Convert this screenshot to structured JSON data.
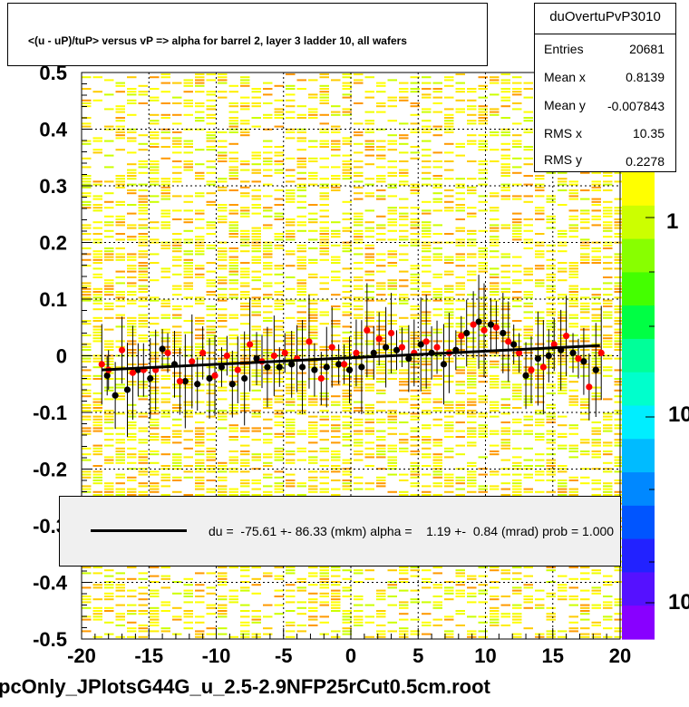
{
  "title": "<(u - uP)/tuP> versus   vP => alpha for barrel 2, layer 3 ladder 10, all wafers",
  "stats": {
    "name": "duOvertuPvP3010",
    "rows": [
      {
        "label": "Entries",
        "value": "20681"
      },
      {
        "label": "Mean x",
        "value": "0.8139"
      },
      {
        "label": "Mean y",
        "value": "-0.007843"
      },
      {
        "label": "RMS x",
        "value": "10.35"
      },
      {
        "label": "RMS y",
        "value": "0.2278"
      }
    ]
  },
  "fit_text": "du =  -75.61 +- 86.33 (mkm) alpha =    1.19 +-  0.84 (mrad) prob = 1.000",
  "footer": "pcOnly_JPlotsG44G_u_2.5-2.9NFP25rCut0.5cm.root",
  "palette_labels": [
    "1",
    "10",
    "10"
  ],
  "chart_data": {
    "type": "scatter",
    "x_range": [
      -20,
      20
    ],
    "y_range": [
      -0.5,
      0.5
    ],
    "x_ticks": [
      "-20",
      "-15",
      "-10",
      "-5",
      "0",
      "5",
      "10",
      "15",
      "20"
    ],
    "y_ticks": [
      "-0.5",
      "-0.4",
      "-0.3",
      "-0.2",
      "-0.1",
      "0",
      "0.1",
      "0.2",
      "0.3",
      "0.4",
      "0.5"
    ],
    "grid": true,
    "fit_line": {
      "x": [
        -18.5,
        18.5
      ],
      "y": [
        -0.025,
        0.018
      ]
    },
    "series": [
      {
        "color": "#000000",
        "x": [
          -18.1,
          -17.5,
          -16.6,
          -15.8,
          -14.9,
          -14.0,
          -13.1,
          -12.3,
          -11.4,
          -10.5,
          -9.6,
          -8.8,
          -7.9,
          -7.0,
          -6.2,
          -5.3,
          -4.4,
          -3.6,
          -2.7,
          -1.8,
          -0.9,
          -0.1,
          0.8,
          1.7,
          2.6,
          3.4,
          4.3,
          5.2,
          6.0,
          6.9,
          7.8,
          8.6,
          9.5,
          10.4,
          11.3,
          12.1,
          13.0,
          13.9,
          14.7,
          15.6,
          16.5,
          17.3,
          18.2
        ],
        "y": [
          -0.035,
          -0.07,
          -0.06,
          -0.025,
          -0.04,
          0.012,
          -0.015,
          -0.045,
          -0.05,
          -0.04,
          -0.02,
          -0.05,
          -0.04,
          -0.005,
          -0.02,
          -0.02,
          -0.015,
          -0.02,
          -0.025,
          -0.02,
          -0.015,
          -0.025,
          -0.02,
          0.005,
          0.015,
          0.01,
          -0.005,
          0.02,
          0.005,
          -0.015,
          0.01,
          0.04,
          0.06,
          0.055,
          0.04,
          0.02,
          -0.035,
          -0.005,
          0.0,
          0.01,
          0.005,
          -0.01,
          -0.025
        ]
      },
      {
        "color": "#ff0000",
        "x": [
          -18.5,
          -18.0,
          -17.0,
          -16.2,
          -15.4,
          -14.5,
          -13.6,
          -12.7,
          -11.8,
          -11.0,
          -10.1,
          -9.2,
          -8.4,
          -7.5,
          -6.6,
          -5.7,
          -4.9,
          -4.0,
          -3.1,
          -2.2,
          -1.4,
          -0.5,
          0.4,
          1.2,
          2.1,
          3.0,
          3.8,
          4.7,
          5.6,
          6.4,
          7.3,
          8.2,
          9.1,
          9.9,
          10.8,
          11.7,
          12.5,
          13.4,
          14.3,
          15.1,
          16.0,
          16.9,
          17.7,
          18.6
        ],
        "y": [
          -0.015,
          -0.025,
          0.01,
          -0.03,
          -0.025,
          -0.025,
          0.005,
          -0.045,
          -0.01,
          0.005,
          -0.035,
          0.0,
          -0.025,
          0.02,
          -0.01,
          0.0,
          0.005,
          -0.005,
          0.025,
          -0.04,
          0.015,
          -0.015,
          0.005,
          0.045,
          0.03,
          0.04,
          0.015,
          0.005,
          0.025,
          0.015,
          0.005,
          0.035,
          0.055,
          0.045,
          0.05,
          0.025,
          0.005,
          -0.025,
          -0.02,
          0.02,
          0.035,
          -0.005,
          -0.055,
          0.005
        ]
      }
    ]
  }
}
